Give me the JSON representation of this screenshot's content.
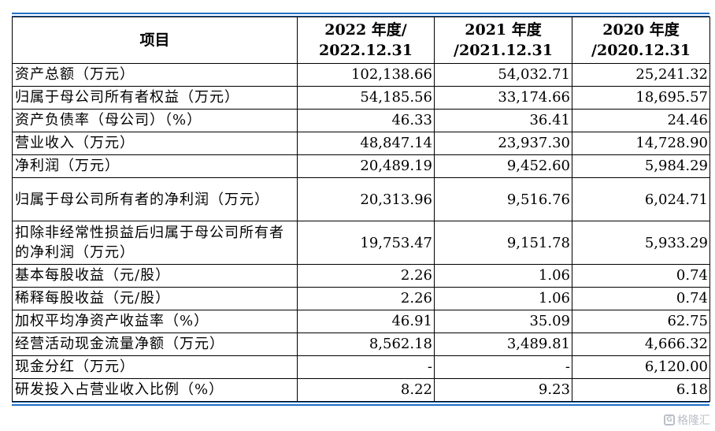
{
  "header": {
    "item": "项目",
    "col1": [
      "2022 年度/",
      "2022.12.31"
    ],
    "col2": [
      "2021 年度",
      "/2021.12.31"
    ],
    "col3": [
      "2020 年度",
      "/2020.12.31"
    ]
  },
  "rows": [
    {
      "label": "资产总额（万元）",
      "v": [
        "102,138.66",
        "54,032.71",
        "25,241.32"
      ],
      "tall": false
    },
    {
      "label": "归属于母公司所有者权益（万元）",
      "v": [
        "54,185.56",
        "33,174.66",
        "18,695.57"
      ],
      "tall": false
    },
    {
      "label": "资产负债率（母公司）（%）",
      "v": [
        "46.33",
        "36.41",
        "24.46"
      ],
      "tall": false
    },
    {
      "label": "营业收入（万元）",
      "v": [
        "48,847.14",
        "23,937.30",
        "14,728.90"
      ],
      "tall": false
    },
    {
      "label": "净利润（万元）",
      "v": [
        "20,489.19",
        "9,452.60",
        "5,984.29"
      ],
      "tall": false
    },
    {
      "label": "归属于母公司所有者的净利润（万元）",
      "v": [
        "20,313.96",
        "9,516.76",
        "6,024.71"
      ],
      "tall": true
    },
    {
      "label": "扣除非经常性损益后归属于母公司所有者的净利润（万元）",
      "v": [
        "19,753.47",
        "9,151.78",
        "5,933.29"
      ],
      "tall": true
    },
    {
      "label": "基本每股收益（元/股）",
      "v": [
        "2.26",
        "1.06",
        "0.74"
      ],
      "tall": false
    },
    {
      "label": "稀释每股收益（元/股）",
      "v": [
        "2.26",
        "1.06",
        "0.74"
      ],
      "tall": false
    },
    {
      "label": "加权平均净资产收益率（%）",
      "v": [
        "46.91",
        "35.09",
        "62.75"
      ],
      "tall": false
    },
    {
      "label": "经营活动现金流量净额（万元）",
      "v": [
        "8,562.18",
        "3,489.81",
        "4,666.32"
      ],
      "tall": false
    },
    {
      "label": "现金分红（万元）",
      "v": [
        "-",
        "-",
        "6,120.00"
      ],
      "tall": false
    },
    {
      "label": "研发投入占营业收入比例（%）",
      "v": [
        "8.22",
        "9.23",
        "6.18"
      ],
      "tall": false
    }
  ],
  "watermark": {
    "mark": "G",
    "text": "格隆汇"
  }
}
